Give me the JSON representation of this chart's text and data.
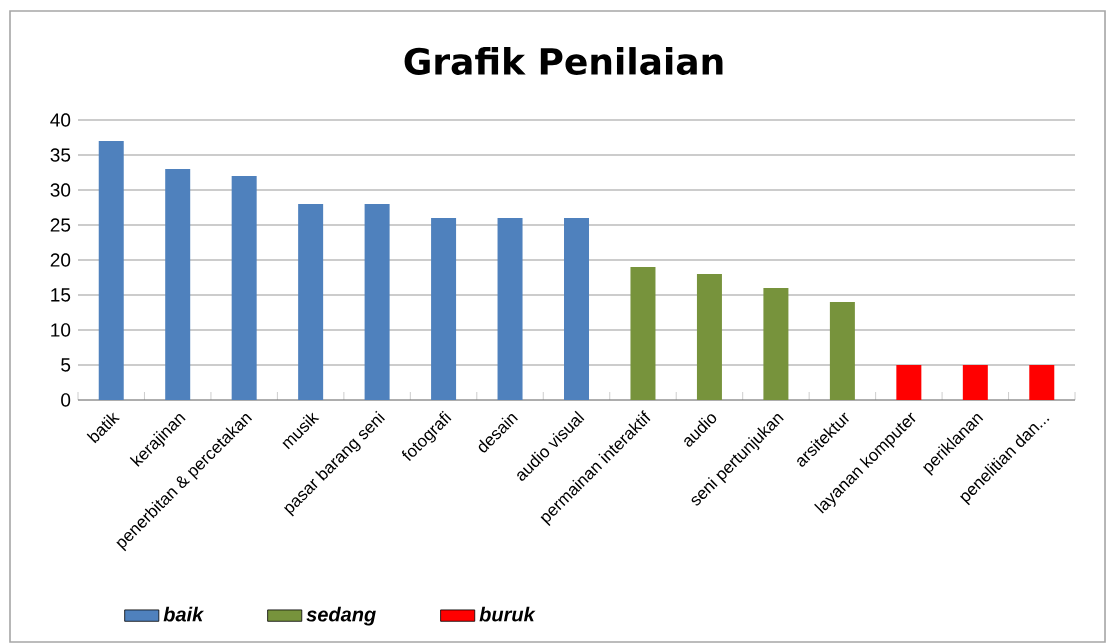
{
  "chart_data": {
    "type": "bar",
    "title": "Grafik Penilaian",
    "categories": [
      "batik",
      "kerajinan",
      "penerbitan & percetakan",
      "musik",
      "pasar barang seni",
      "fotografi",
      "desain",
      "audio visual",
      "permainan interaktif",
      "audio",
      "seni pertunjukan",
      "arsitektur",
      "layanan komputer",
      "periklanan",
      "penelitian dan..."
    ],
    "series": [
      {
        "name": "baik",
        "color": "#4f81bd",
        "values": [
          37,
          33,
          32,
          28,
          28,
          26,
          26,
          26,
          null,
          null,
          null,
          null,
          null,
          null,
          null
        ]
      },
      {
        "name": "sedang",
        "color": "#77933c",
        "values": [
          null,
          null,
          null,
          null,
          null,
          null,
          null,
          null,
          19,
          18,
          16,
          14,
          null,
          null,
          null
        ]
      },
      {
        "name": "buruk",
        "color": "#ff0000",
        "values": [
          null,
          null,
          null,
          null,
          null,
          null,
          null,
          null,
          null,
          null,
          null,
          null,
          5,
          5,
          5
        ]
      }
    ],
    "ylim": [
      0,
      40
    ],
    "yticks": [
      0,
      5,
      10,
      15,
      20,
      25,
      30,
      35,
      40
    ],
    "grid": "y",
    "legend": "bottom"
  }
}
